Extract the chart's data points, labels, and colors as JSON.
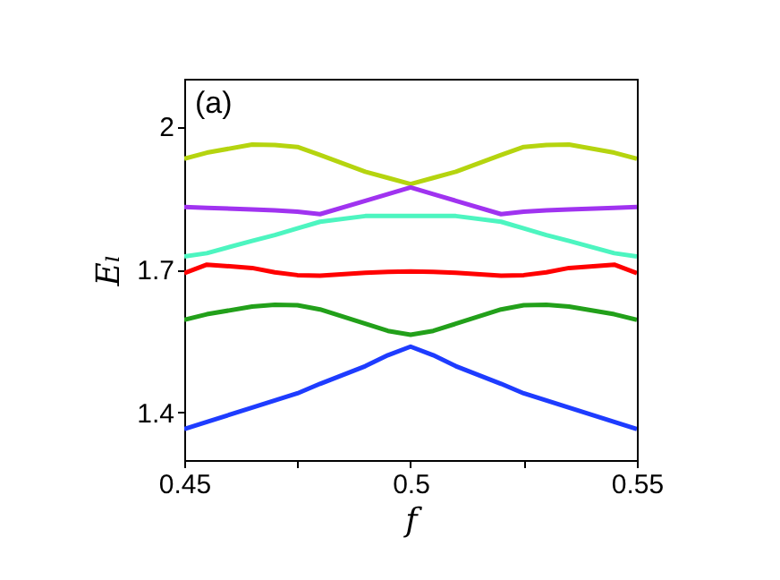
{
  "chart_data": {
    "type": "line",
    "xlabel": "f",
    "ylabel": "Eₗ",
    "annotations": [
      "(a)"
    ],
    "xlim": [
      0.45,
      0.55
    ],
    "ylim": [
      1.3,
      2.1
    ],
    "xticks": [
      0.45,
      {
        "value": 0.475,
        "label": null
      },
      0.5,
      {
        "value": 0.525,
        "label": null
      },
      0.55
    ],
    "yticks": [
      1.4,
      1.7,
      2
    ],
    "grid": false,
    "legend": false,
    "marker": "none",
    "line_style": "solid",
    "x": [
      0.45,
      0.455,
      0.465,
      0.47,
      0.475,
      0.48,
      0.49,
      0.495,
      0.5,
      0.505,
      0.51,
      0.52,
      0.525,
      0.53,
      0.535,
      0.545,
      0.55
    ],
    "series": [
      {
        "color": "#b5d40f",
        "values": [
          1.932,
          1.945,
          1.962,
          1.961,
          1.957,
          1.94,
          1.905,
          1.892,
          1.879,
          1.892,
          1.905,
          1.94,
          1.957,
          1.961,
          1.962,
          1.945,
          1.932
        ]
      },
      {
        "color": "#a033f0",
        "values": [
          1.831,
          1.829,
          1.826,
          1.824,
          1.821,
          1.816,
          1.844,
          1.858,
          1.872,
          1.858,
          1.844,
          1.816,
          1.821,
          1.824,
          1.826,
          1.829,
          1.831
        ]
      },
      {
        "color": "#4df5c0",
        "values": [
          1.727,
          1.734,
          1.76,
          1.772,
          1.786,
          1.8,
          1.812,
          1.812,
          1.812,
          1.812,
          1.812,
          1.8,
          1.786,
          1.772,
          1.76,
          1.734,
          1.727
        ]
      },
      {
        "color": "#ff0000",
        "values": [
          1.692,
          1.71,
          1.703,
          1.694,
          1.688,
          1.687,
          1.693,
          1.695,
          1.696,
          1.695,
          1.693,
          1.687,
          1.688,
          1.694,
          1.703,
          1.71,
          1.692
        ]
      },
      {
        "color": "#22a01a",
        "values": [
          1.594,
          1.606,
          1.622,
          1.626,
          1.625,
          1.616,
          1.586,
          1.571,
          1.563,
          1.571,
          1.586,
          1.616,
          1.625,
          1.626,
          1.622,
          1.606,
          1.594
        ]
      },
      {
        "color": "#1e3cff",
        "values": [
          1.365,
          1.38,
          1.41,
          1.425,
          1.44,
          1.46,
          1.497,
          1.52,
          1.538,
          1.52,
          1.497,
          1.46,
          1.44,
          1.425,
          1.41,
          1.38,
          1.365
        ]
      }
    ]
  }
}
